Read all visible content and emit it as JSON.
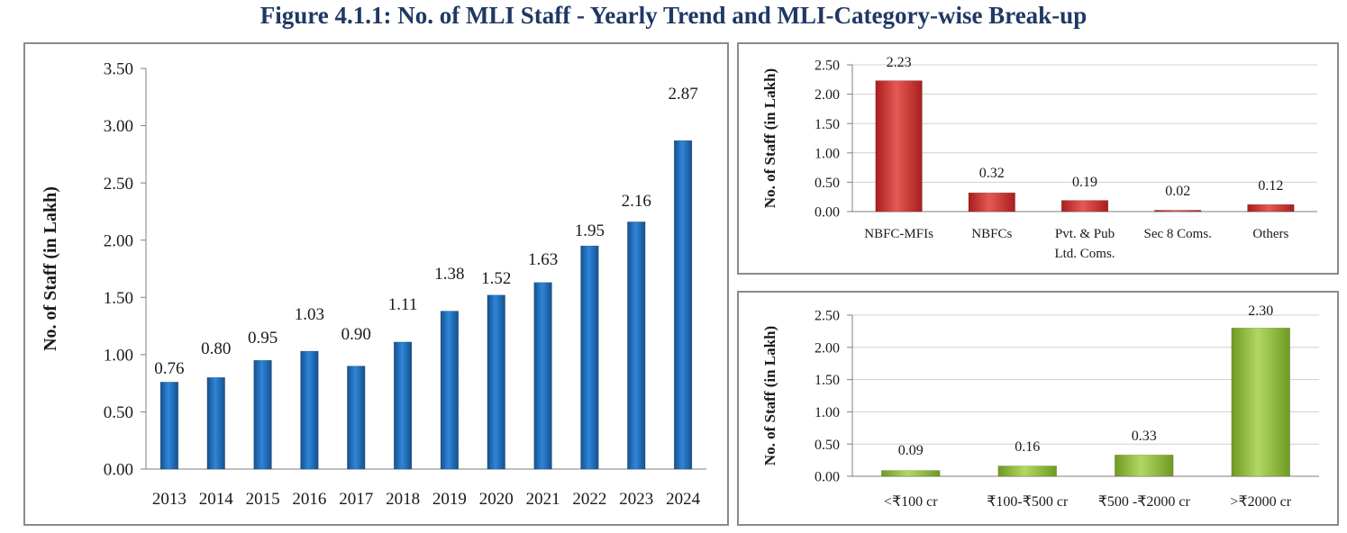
{
  "figure_title": "Figure 4.1.1: No. of MLI Staff - Yearly Trend and MLI-Category-wise Break-up",
  "colors": {
    "title": "#1f3864",
    "blue_bar": "#1f6fc0",
    "red_bar": "#d0312f",
    "green_bar": "#8dbb36",
    "grid": "#d0d0d0",
    "axis": "#7f7f7f",
    "panel_border": "#8a8a8a"
  },
  "chart_data": [
    {
      "type": "bar",
      "categories": [
        "2013",
        "2014",
        "2015",
        "2016",
        "2017",
        "2018",
        "2019",
        "2020",
        "2021",
        "2022",
        "2023",
        "2024"
      ],
      "values": [
        0.76,
        0.8,
        0.95,
        1.03,
        0.9,
        1.11,
        1.38,
        1.52,
        1.63,
        1.95,
        2.16,
        2.87
      ],
      "data_labels": [
        "0.76",
        "0.80",
        "0.95",
        "1.03",
        "0.90",
        "1.11",
        "1.38",
        "1.52",
        "1.63",
        "1.95",
        "2.16",
        "2.87"
      ],
      "yticks": [
        "0.00",
        "0.50",
        "1.00",
        "1.50",
        "2.00",
        "2.50",
        "3.00",
        "3.50"
      ],
      "ylim": [
        0,
        3.5
      ],
      "ylabel": "No. of Staff (in Lakh)",
      "xlabel": "",
      "grid": false,
      "color": "blue"
    },
    {
      "type": "bar",
      "categories": [
        [
          "NBFC-MFIs"
        ],
        [
          "NBFCs"
        ],
        [
          "Pvt. & Pub",
          "Ltd. Coms."
        ],
        [
          "Sec 8 Coms."
        ],
        [
          "Others"
        ]
      ],
      "values": [
        2.23,
        0.32,
        0.19,
        0.02,
        0.12
      ],
      "data_labels": [
        "2.23",
        "0.32",
        "0.19",
        "0.02",
        "0.12"
      ],
      "yticks": [
        "0.00",
        "0.50",
        "1.00",
        "1.50",
        "2.00",
        "2.50"
      ],
      "ylim": [
        0,
        2.5
      ],
      "ylabel": "No. of Staff (in Lakh)",
      "xlabel": "",
      "grid": true,
      "color": "red"
    },
    {
      "type": "bar",
      "categories": [
        [
          "<₹100 cr"
        ],
        [
          "₹100-₹500 cr"
        ],
        [
          "₹500 -₹2000 cr"
        ],
        [
          ">₹2000 cr"
        ]
      ],
      "values": [
        0.09,
        0.16,
        0.33,
        2.3
      ],
      "data_labels": [
        "0.09",
        "0.16",
        "0.33",
        "2.30"
      ],
      "yticks": [
        "0.00",
        "0.50",
        "1.00",
        "1.50",
        "2.00",
        "2.50"
      ],
      "ylim": [
        0,
        2.5
      ],
      "ylabel": "No. of Staff (in Lakh)",
      "xlabel": "",
      "grid": true,
      "color": "green"
    }
  ]
}
